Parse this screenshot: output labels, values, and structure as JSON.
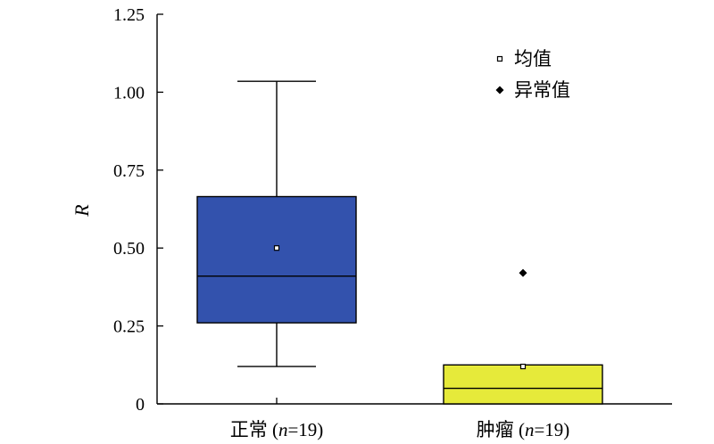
{
  "chart_data": {
    "type": "box",
    "ylabel": "R",
    "xlabel": "",
    "ylim": [
      0,
      1.25
    ],
    "yticks": [
      "0",
      "0.25",
      "0.50",
      "0.75",
      "1.00",
      "1.25"
    ],
    "yticks_values": [
      0,
      0.25,
      0.5,
      0.75,
      1.0,
      1.25
    ],
    "categories": [
      {
        "name": "正常",
        "n_label": "n",
        "n_value": "=19)",
        "open": " ("
      },
      {
        "name": "肿瘤",
        "n_label": "n",
        "n_value": "=19)",
        "open": " ("
      }
    ],
    "boxes": [
      {
        "whisker_low": 0.12,
        "q1": 0.26,
        "median": 0.41,
        "q3": 0.665,
        "whisker_high": 1.035,
        "mean": 0.5,
        "outliers": [],
        "color": "#3352ad"
      },
      {
        "whisker_low": 0.0,
        "q1": 0.0,
        "median": 0.05,
        "q3": 0.125,
        "whisker_high": 0.125,
        "mean": 0.12,
        "outliers": [
          0.42
        ],
        "color": "#e6ea3a"
      }
    ],
    "legend": {
      "position": "top-right",
      "entries": [
        "均值",
        "异常值"
      ]
    },
    "grid": false
  }
}
